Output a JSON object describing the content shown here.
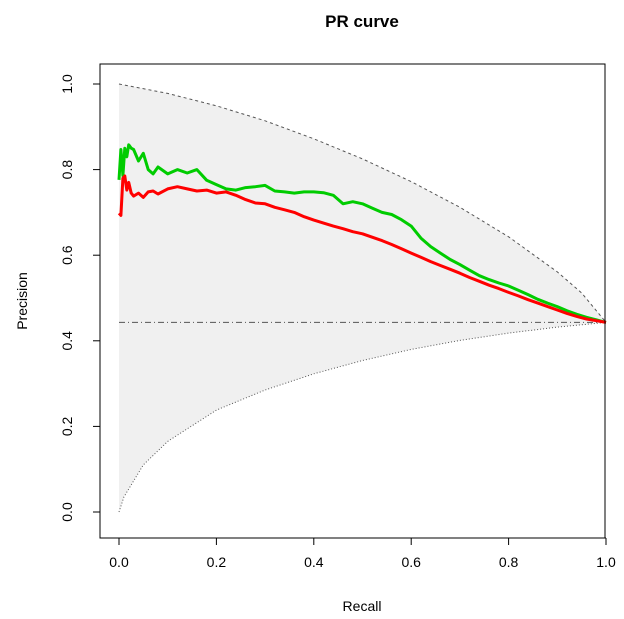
{
  "chart_data": {
    "type": "line",
    "title": "PR curve",
    "xlabel": "Recall",
    "ylabel": "Precision",
    "xlim": [
      0,
      1
    ],
    "ylim": [
      0,
      1
    ],
    "x_ticks": [
      "0.0",
      "0.2",
      "0.4",
      "0.6",
      "0.8",
      "1.0"
    ],
    "y_ticks": [
      "0.0",
      "0.2",
      "0.4",
      "0.6",
      "0.8",
      "1.0"
    ],
    "grid": false,
    "legend": "none",
    "baseline_precision": 0.443,
    "colors": {
      "band_fill": "#f0f0f0",
      "band_edge": "#555555",
      "baseline": "#555555",
      "green": "#00cc00",
      "red": "#ff0000"
    },
    "max_bound": {
      "x": [
        0,
        0.1,
        0.2,
        0.3,
        0.4,
        0.5,
        0.6,
        0.7,
        0.8,
        0.9,
        0.95,
        1.0
      ],
      "y": [
        1.0,
        0.978,
        0.949,
        0.914,
        0.872,
        0.825,
        0.772,
        0.712,
        0.643,
        0.561,
        0.512,
        0.443
      ]
    },
    "min_bound": {
      "x": [
        0,
        0.01,
        0.05,
        0.1,
        0.2,
        0.3,
        0.4,
        0.5,
        0.6,
        0.7,
        0.8,
        0.9,
        1.0
      ],
      "y": [
        0,
        0.035,
        0.11,
        0.165,
        0.238,
        0.285,
        0.323,
        0.354,
        0.38,
        0.401,
        0.418,
        0.432,
        0.443
      ]
    },
    "series": [
      {
        "color": "green",
        "x": [
          0,
          0.004,
          0.008,
          0.012,
          0.016,
          0.02,
          0.025,
          0.03,
          0.04,
          0.05,
          0.06,
          0.07,
          0.08,
          0.1,
          0.12,
          0.14,
          0.16,
          0.18,
          0.2,
          0.22,
          0.24,
          0.26,
          0.28,
          0.3,
          0.32,
          0.34,
          0.36,
          0.38,
          0.4,
          0.42,
          0.44,
          0.46,
          0.48,
          0.5,
          0.52,
          0.54,
          0.56,
          0.58,
          0.6,
          0.62,
          0.64,
          0.66,
          0.68,
          0.7,
          0.72,
          0.74,
          0.76,
          0.78,
          0.8,
          0.82,
          0.84,
          0.86,
          0.88,
          0.9,
          0.92,
          0.94,
          0.96,
          0.98,
          1.0
        ],
        "y": [
          0.776,
          0.847,
          0.786,
          0.85,
          0.83,
          0.858,
          0.85,
          0.847,
          0.82,
          0.838,
          0.8,
          0.79,
          0.806,
          0.79,
          0.8,
          0.792,
          0.8,
          0.775,
          0.765,
          0.755,
          0.752,
          0.758,
          0.76,
          0.763,
          0.75,
          0.748,
          0.745,
          0.748,
          0.748,
          0.746,
          0.74,
          0.72,
          0.725,
          0.72,
          0.71,
          0.7,
          0.695,
          0.683,
          0.668,
          0.64,
          0.62,
          0.605,
          0.59,
          0.578,
          0.565,
          0.552,
          0.543,
          0.535,
          0.528,
          0.518,
          0.508,
          0.497,
          0.488,
          0.48,
          0.47,
          0.462,
          0.455,
          0.449,
          0.443
        ]
      },
      {
        "color": "red",
        "x": [
          0,
          0.004,
          0.008,
          0.012,
          0.016,
          0.02,
          0.025,
          0.03,
          0.04,
          0.05,
          0.06,
          0.07,
          0.08,
          0.1,
          0.12,
          0.14,
          0.16,
          0.18,
          0.2,
          0.22,
          0.24,
          0.26,
          0.28,
          0.3,
          0.32,
          0.34,
          0.36,
          0.38,
          0.4,
          0.42,
          0.44,
          0.46,
          0.48,
          0.5,
          0.52,
          0.54,
          0.56,
          0.58,
          0.6,
          0.62,
          0.64,
          0.66,
          0.68,
          0.7,
          0.72,
          0.74,
          0.76,
          0.78,
          0.8,
          0.82,
          0.84,
          0.86,
          0.88,
          0.9,
          0.92,
          0.94,
          0.96,
          0.98,
          1.0
        ],
        "y": [
          0.698,
          0.693,
          0.78,
          0.785,
          0.752,
          0.77,
          0.745,
          0.738,
          0.745,
          0.735,
          0.748,
          0.75,
          0.743,
          0.755,
          0.76,
          0.755,
          0.75,
          0.752,
          0.745,
          0.748,
          0.74,
          0.73,
          0.722,
          0.72,
          0.712,
          0.706,
          0.7,
          0.69,
          0.682,
          0.675,
          0.668,
          0.662,
          0.655,
          0.65,
          0.642,
          0.634,
          0.625,
          0.615,
          0.605,
          0.595,
          0.585,
          0.576,
          0.567,
          0.558,
          0.548,
          0.539,
          0.53,
          0.522,
          0.513,
          0.505,
          0.496,
          0.488,
          0.48,
          0.472,
          0.464,
          0.457,
          0.451,
          0.447,
          0.443
        ]
      }
    ]
  }
}
